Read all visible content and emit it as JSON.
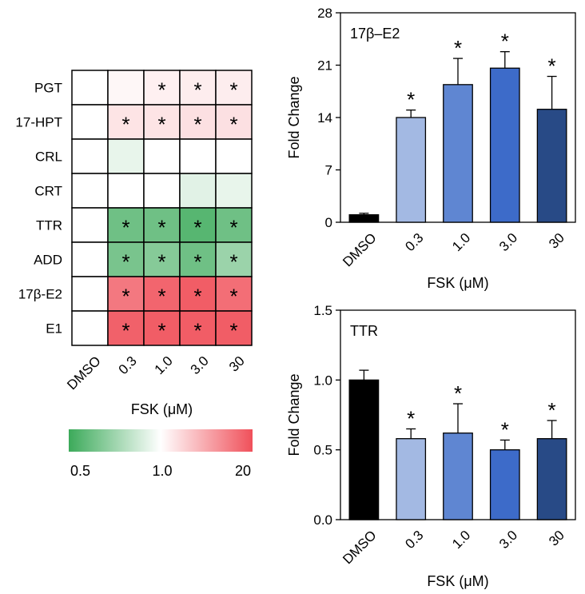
{
  "chart_data": [
    {
      "type": "heatmap",
      "rows": [
        "PGT",
        "17-HPT",
        "CRL",
        "CRT",
        "TTR",
        "ADD",
        "17β-E2",
        "E1"
      ],
      "columns": [
        "DMSO",
        "0.3",
        "1.0",
        "3.0",
        "30"
      ],
      "values": [
        [
          1.0,
          1.15,
          1.3,
          1.35,
          1.35
        ],
        [
          1.0,
          1.6,
          1.6,
          1.7,
          1.7
        ],
        [
          1.0,
          0.92,
          1.0,
          1.0,
          1.0
        ],
        [
          1.0,
          1.0,
          1.0,
          0.9,
          0.92
        ],
        [
          1.0,
          0.6,
          0.6,
          0.55,
          0.6
        ],
        [
          1.0,
          0.62,
          0.65,
          0.6,
          0.7
        ],
        [
          1.0,
          10,
          14,
          16,
          12
        ],
        [
          1.0,
          15,
          16,
          16,
          16
        ]
      ],
      "significant": [
        [
          false,
          false,
          true,
          true,
          true
        ],
        [
          false,
          true,
          true,
          true,
          true
        ],
        [
          false,
          false,
          false,
          false,
          false
        ],
        [
          false,
          false,
          false,
          false,
          false
        ],
        [
          false,
          true,
          true,
          true,
          true
        ],
        [
          false,
          true,
          true,
          true,
          true
        ],
        [
          false,
          true,
          true,
          true,
          true
        ],
        [
          false,
          true,
          true,
          true,
          true
        ]
      ],
      "marker": "*",
      "xlabel": "FSK (μM)",
      "colorbar": {
        "low_color": "#3caa5a",
        "mid_color": "#ffffff",
        "high_color": "#f0505a",
        "scale_min": 0.5,
        "scale_mid": 1.0,
        "scale_max": 20,
        "labels": [
          "0.5",
          "1.0",
          "20"
        ]
      }
    },
    {
      "type": "bar",
      "title": "17β–E2",
      "categories": [
        "DMSO",
        "0.3",
        "1.0",
        "3.0",
        "30"
      ],
      "values": [
        1.0,
        14.0,
        18.4,
        20.6,
        15.1
      ],
      "errors": [
        0.2,
        1.0,
        3.5,
        2.2,
        4.4
      ],
      "significant": [
        false,
        true,
        true,
        true,
        true
      ],
      "colors": [
        "#000000",
        "#a3b9e3",
        "#5f86d2",
        "#3d6bc9",
        "#284a86"
      ],
      "ylim": [
        0,
        28
      ],
      "yticks": [
        "0",
        "7",
        "14",
        "21",
        "28"
      ],
      "ylabel": "Fold Change",
      "xlabel": "FSK (μM)"
    },
    {
      "type": "bar",
      "title": "TTR",
      "categories": [
        "DMSO",
        "0.3",
        "1.0",
        "3.0",
        "30"
      ],
      "values": [
        1.0,
        0.58,
        0.62,
        0.5,
        0.58
      ],
      "errors": [
        0.07,
        0.07,
        0.21,
        0.07,
        0.13
      ],
      "significant": [
        false,
        true,
        true,
        true,
        true
      ],
      "colors": [
        "#000000",
        "#a3b9e3",
        "#5f86d2",
        "#3d6bc9",
        "#284a86"
      ],
      "ylim": [
        0,
        1.5
      ],
      "yticks": [
        "0.0",
        "0.5",
        "1.0",
        "1.5"
      ],
      "ylabel": "Fold Change",
      "xlabel": "FSK (μM)"
    }
  ]
}
